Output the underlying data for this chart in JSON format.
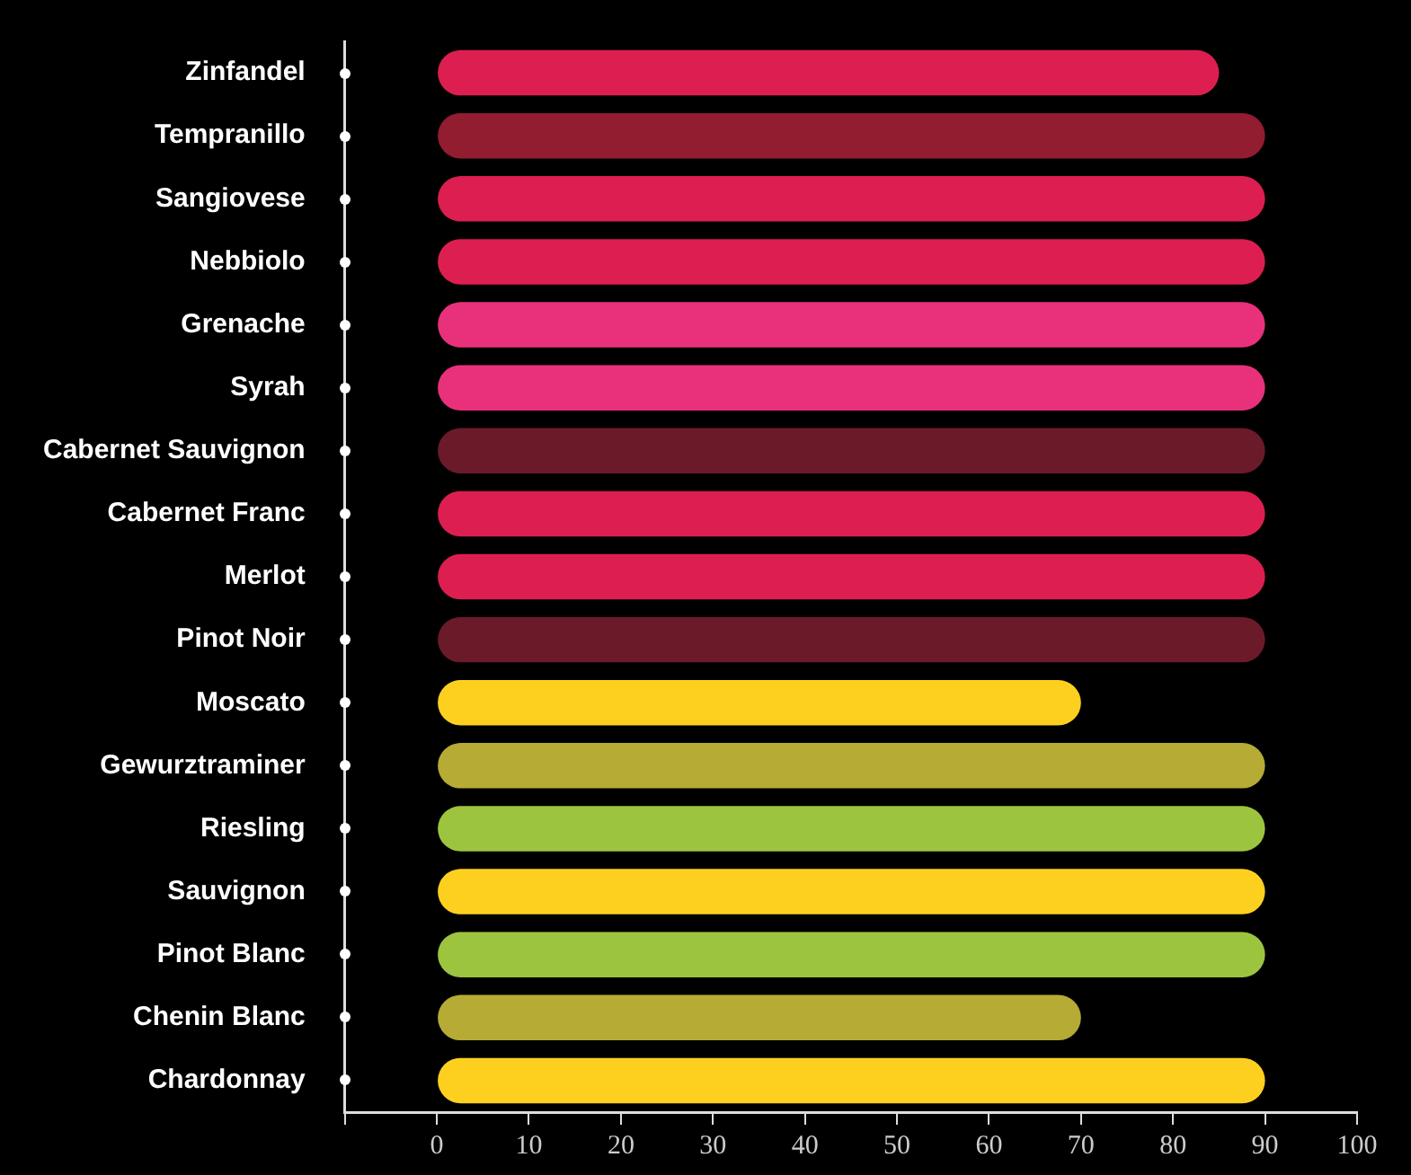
{
  "chart_data": {
    "type": "bar",
    "orientation": "horizontal",
    "categories": [
      "Zinfandel",
      "Tempranillo",
      "Sangiovese",
      "Nebbiolo",
      "Grenache",
      "Syrah",
      "Cabernet Sauvignon",
      "Cabernet Franc",
      "Merlot",
      "Pinot Noir",
      "Moscato",
      "Gewurztraminer",
      "Riesling",
      "Sauvignon",
      "Pinot Blanc",
      "Chenin Blanc",
      "Chardonnay"
    ],
    "values": [
      85,
      90,
      90,
      90,
      90,
      90,
      90,
      90,
      90,
      90,
      70,
      90,
      90,
      90,
      90,
      70,
      90
    ],
    "colors": [
      "#dc1f50",
      "#921c30",
      "#dc1f50",
      "#dc1f50",
      "#e8317a",
      "#e8317a",
      "#6b1a2a",
      "#dc1f50",
      "#dc1f50",
      "#6b1a2a",
      "#fdd020",
      "#b5ab35",
      "#9dc43f",
      "#fdd020",
      "#9dc43f",
      "#b5ab35",
      "#fdd020"
    ],
    "xlim": [
      -10,
      100
    ],
    "xticks": [
      {
        "value": -10,
        "label": null
      },
      0,
      10,
      20,
      30,
      40,
      50,
      60,
      70,
      80,
      90,
      100
    ],
    "grid": false,
    "legend": false
  }
}
